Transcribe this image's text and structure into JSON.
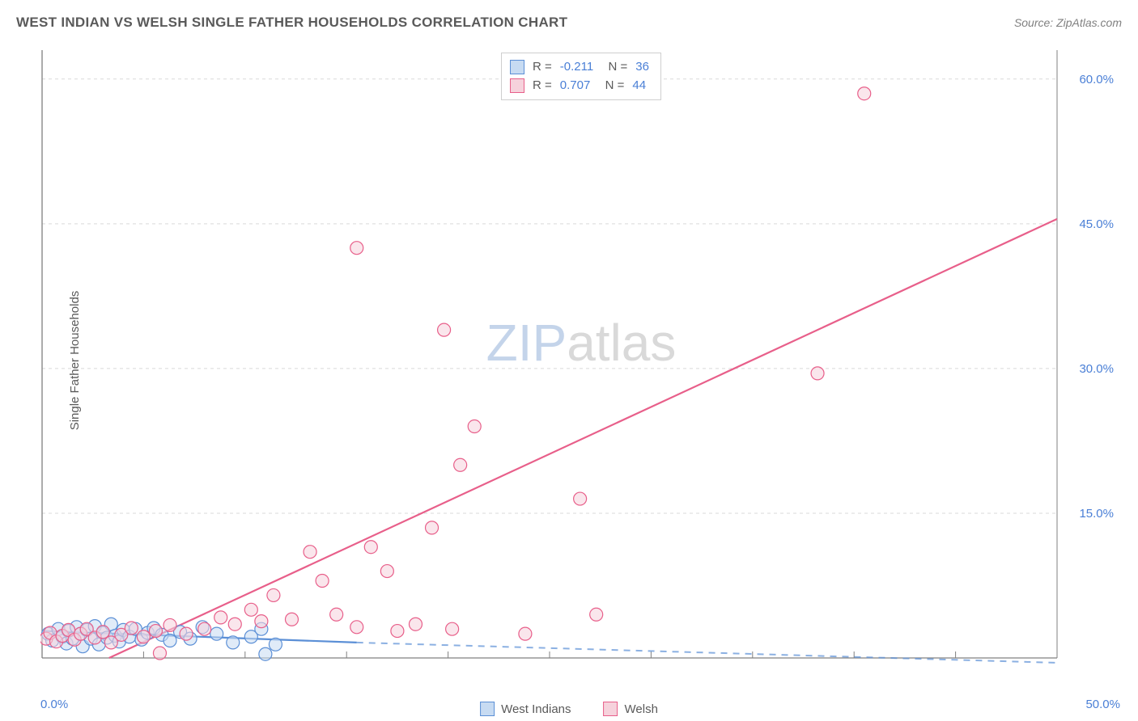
{
  "title": "WEST INDIAN VS WELSH SINGLE FATHER HOUSEHOLDS CORRELATION CHART",
  "source_label": "Source:",
  "source_name": "ZipAtlas.com",
  "y_axis_label": "Single Father Households",
  "watermark": {
    "part1": "ZIP",
    "part2": "atlas",
    "color1": "#c4d4ea",
    "color2": "#d9d9d9"
  },
  "chart": {
    "type": "scatter",
    "background_color": "#ffffff",
    "grid_color": "#d9d9d9",
    "axis_color": "#808080",
    "tick_label_color": "#4a7fd6",
    "xlim": [
      0,
      50
    ],
    "ylim": [
      0,
      63
    ],
    "x_origin_label": "0.0%",
    "x_max_label": "50.0%",
    "y_ticks": [
      15,
      30,
      45,
      60
    ],
    "y_tick_labels": [
      "15.0%",
      "30.0%",
      "45.0%",
      "60.0%"
    ],
    "x_minor_ticks": [
      5,
      10,
      15,
      20,
      25,
      30,
      35,
      40,
      45
    ],
    "marker_radius": 8,
    "marker_stroke_width": 1.2,
    "trend_line_width": 2.2,
    "trend_dash_width": 2,
    "series": [
      {
        "name": "West Indians",
        "fill": "#c7dbf2",
        "stroke": "#5b8fd6",
        "fill_opacity": 0.55,
        "R": "-0.211",
        "N": "36",
        "trend": {
          "x1": 0,
          "y1": 2.8,
          "x2": 15.5,
          "y2": 1.6,
          "dash_x2": 50,
          "dash_y2": -0.5
        },
        "points": [
          [
            0.3,
            2.5
          ],
          [
            0.5,
            1.8
          ],
          [
            0.8,
            3.0
          ],
          [
            1.0,
            2.2
          ],
          [
            1.2,
            1.5
          ],
          [
            1.3,
            2.8
          ],
          [
            1.5,
            2.0
          ],
          [
            1.7,
            3.2
          ],
          [
            1.9,
            2.5
          ],
          [
            2.0,
            1.2
          ],
          [
            2.2,
            2.9
          ],
          [
            2.4,
            2.0
          ],
          [
            2.6,
            3.3
          ],
          [
            2.8,
            1.4
          ],
          [
            3.0,
            2.6
          ],
          [
            3.2,
            2.1
          ],
          [
            3.4,
            3.5
          ],
          [
            3.6,
            2.3
          ],
          [
            3.8,
            1.7
          ],
          [
            4.0,
            2.9
          ],
          [
            4.3,
            2.2
          ],
          [
            4.6,
            3.0
          ],
          [
            4.9,
            1.9
          ],
          [
            5.2,
            2.6
          ],
          [
            5.5,
            3.1
          ],
          [
            5.9,
            2.4
          ],
          [
            6.3,
            1.8
          ],
          [
            6.8,
            2.7
          ],
          [
            7.3,
            2.0
          ],
          [
            7.9,
            3.2
          ],
          [
            8.6,
            2.5
          ],
          [
            9.4,
            1.6
          ],
          [
            10.3,
            2.2
          ],
          [
            10.8,
            3.0
          ],
          [
            11.5,
            1.4
          ],
          [
            11.0,
            0.4
          ]
        ]
      },
      {
        "name": "Welsh",
        "fill": "#f6d2dc",
        "stroke": "#e85f8a",
        "fill_opacity": 0.55,
        "R": "0.707",
        "N": "44",
        "trend": {
          "x1": 3.3,
          "y1": 0,
          "x2": 50,
          "y2": 45.5
        },
        "points": [
          [
            0.2,
            2.0
          ],
          [
            0.4,
            2.6
          ],
          [
            0.7,
            1.7
          ],
          [
            1.0,
            2.3
          ],
          [
            1.3,
            2.9
          ],
          [
            1.6,
            1.9
          ],
          [
            1.9,
            2.5
          ],
          [
            2.2,
            3.0
          ],
          [
            2.6,
            2.1
          ],
          [
            3.0,
            2.7
          ],
          [
            3.4,
            1.6
          ],
          [
            3.9,
            2.4
          ],
          [
            4.4,
            3.1
          ],
          [
            5.0,
            2.2
          ],
          [
            5.6,
            2.8
          ],
          [
            6.3,
            3.4
          ],
          [
            7.1,
            2.5
          ],
          [
            8.0,
            3.0
          ],
          [
            8.8,
            4.2
          ],
          [
            9.5,
            3.5
          ],
          [
            10.3,
            5.0
          ],
          [
            10.8,
            3.8
          ],
          [
            11.4,
            6.5
          ],
          [
            12.3,
            4.0
          ],
          [
            13.2,
            11.0
          ],
          [
            13.8,
            8.0
          ],
          [
            14.5,
            4.5
          ],
          [
            15.5,
            3.2
          ],
          [
            16.2,
            11.5
          ],
          [
            17.0,
            9.0
          ],
          [
            17.5,
            2.8
          ],
          [
            18.4,
            3.5
          ],
          [
            19.2,
            13.5
          ],
          [
            20.2,
            3.0
          ],
          [
            20.6,
            20.0
          ],
          [
            21.3,
            24.0
          ],
          [
            19.8,
            34.0
          ],
          [
            23.8,
            2.5
          ],
          [
            26.5,
            16.5
          ],
          [
            27.3,
            4.5
          ],
          [
            38.2,
            29.5
          ],
          [
            40.5,
            58.5
          ],
          [
            15.5,
            42.5
          ],
          [
            5.8,
            0.5
          ]
        ]
      }
    ],
    "legend_bottom": [
      {
        "label": "West Indians",
        "fill": "#c7dbf2",
        "stroke": "#5b8fd6"
      },
      {
        "label": "Welsh",
        "fill": "#f6d2dc",
        "stroke": "#e85f8a"
      }
    ]
  }
}
